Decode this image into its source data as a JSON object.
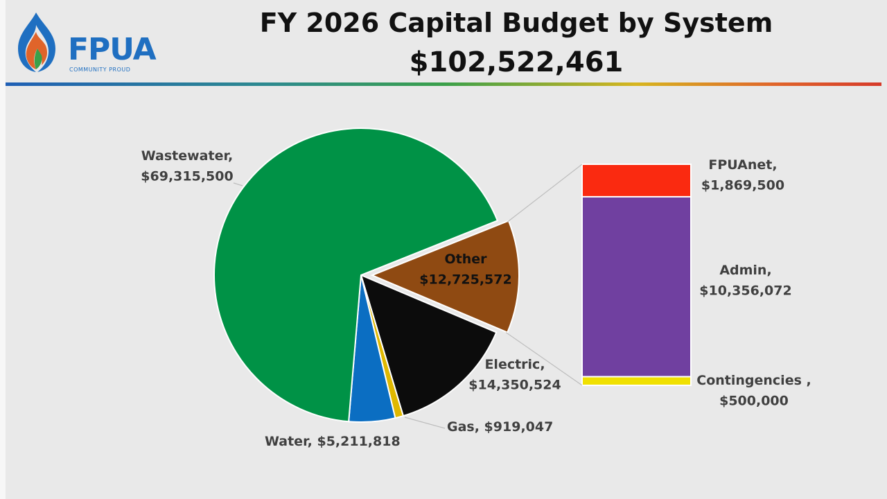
{
  "header": {
    "title": "FY 2026 Capital Budget by System",
    "total": "$102,522,461"
  },
  "logo": {
    "text": "FPUA",
    "tagline": "COMMUNITY PROUD",
    "icon": "flame-icon",
    "colors": {
      "primary": "#1f6fc1",
      "accent1": "#e0642a",
      "accent2": "#3aa04a"
    }
  },
  "chart_data": [
    {
      "type": "pie",
      "title": "FY 2026 Capital Budget by System",
      "slices": [
        {
          "name": "Wastewater",
          "value": 69315500,
          "label": "Wastewater,",
          "value_label": "$69,315,500",
          "color": "#009246"
        },
        {
          "name": "Other",
          "value": 12725572,
          "label": "Other",
          "value_label": "$12,725,572",
          "color": "#8f4a12",
          "exploded": true
        },
        {
          "name": "Electric",
          "value": 14350524,
          "label": "Electric,",
          "value_label": "$14,350,524",
          "color": "#0c0c0c"
        },
        {
          "name": "Gas",
          "value": 919047,
          "label": "Gas, $919,047",
          "color": "#e0b800"
        },
        {
          "name": "Water",
          "value": 5211818,
          "label": "Water, $5,211,818",
          "color": "#0b6ec2"
        }
      ]
    },
    {
      "type": "bar",
      "stacked": true,
      "categories": [
        "Other"
      ],
      "series": [
        {
          "name": "Contingencies",
          "value": 500000,
          "label": "Contingencies ,",
          "value_label": "$500,000",
          "color": "#f0e000"
        },
        {
          "name": "Admin",
          "value": 10356072,
          "label": "Admin,",
          "value_label": "$10,356,072",
          "color": "#7040a0"
        },
        {
          "name": "FPUAnet",
          "value": 1869500,
          "label": "FPUAnet,",
          "value_label": "$1,869,500",
          "color": "#fa2a10"
        }
      ]
    }
  ]
}
